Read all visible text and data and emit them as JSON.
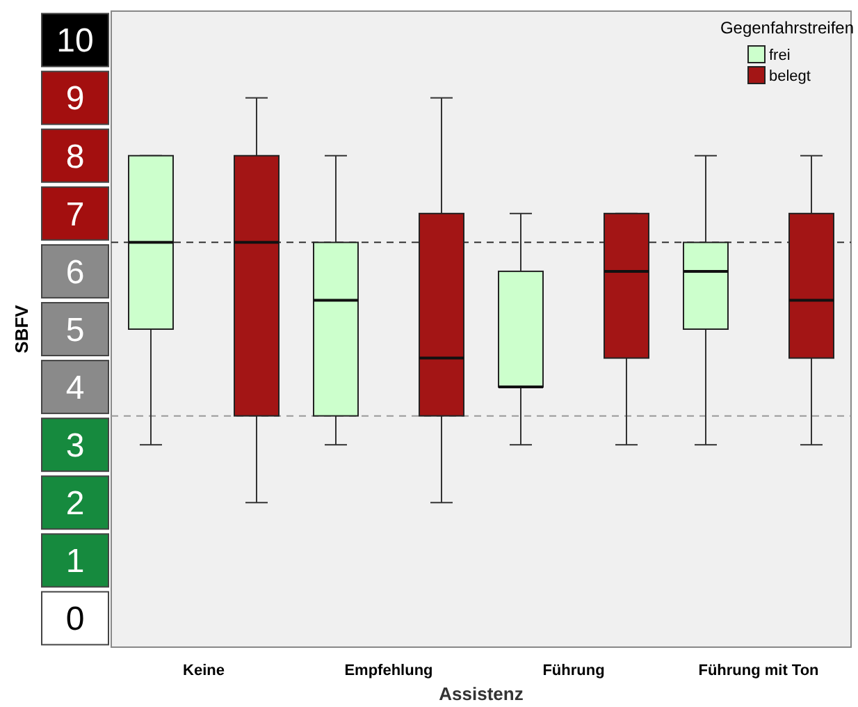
{
  "chart_data": {
    "type": "box",
    "xlabel": "Assistenz",
    "ylabel": "SBFV",
    "legend_title": "Gegenfahrstreifen",
    "legend": "top right",
    "categories": [
      "Keine",
      "Empfehlung",
      "Führung",
      "Führung mit Ton"
    ],
    "ylim": [
      -0.5,
      10.5
    ],
    "yticks": [
      0,
      1,
      2,
      3,
      4,
      5,
      6,
      7,
      8,
      9,
      10
    ],
    "grid": false,
    "series": [
      {
        "name": "frei",
        "color": "#ccffcc",
        "boxes": [
          {
            "low": 3,
            "q1": 5,
            "median": 6.5,
            "q3": 8,
            "high": 8
          },
          {
            "low": 3,
            "q1": 3.5,
            "median": 5.5,
            "q3": 6.5,
            "high": 8
          },
          {
            "low": 3,
            "q1": 4,
            "median": 4,
            "q3": 6,
            "high": 7
          },
          {
            "low": 3,
            "q1": 5,
            "median": 6,
            "q3": 6.5,
            "high": 8
          }
        ]
      },
      {
        "name": "belegt",
        "color": "#a31515",
        "boxes": [
          {
            "low": 2,
            "q1": 3.5,
            "median": 6.5,
            "q3": 8,
            "high": 9
          },
          {
            "low": 2,
            "q1": 3.5,
            "median": 4.5,
            "q3": 7,
            "high": 9
          },
          {
            "low": 3,
            "q1": 4.5,
            "median": 6,
            "q3": 7,
            "high": 7
          },
          {
            "low": 3,
            "q1": 4.5,
            "median": 5.5,
            "q3": 7,
            "high": 8
          }
        ]
      }
    ],
    "ref_lines": [
      {
        "axis": "y",
        "value": 6.5,
        "color": "#333333",
        "line_style": "dashed"
      },
      {
        "axis": "y",
        "value": 3.5,
        "color": "#999999",
        "line_style": "dashed"
      }
    ]
  }
}
